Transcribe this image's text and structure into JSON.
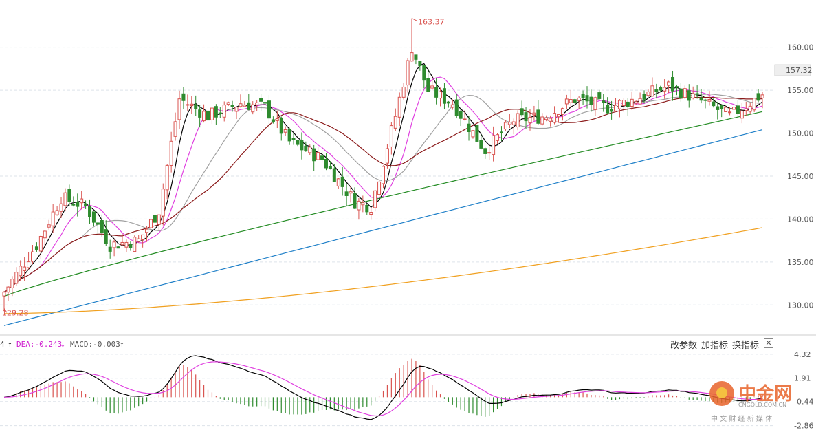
{
  "chart_data": [
    {
      "type": "candlestick",
      "y_ticks": [
        "160.00",
        "155.00",
        "150.00",
        "145.00",
        "140.00",
        "135.00",
        "130.00"
      ],
      "ylim": [
        126.5,
        165.5
      ],
      "last_price_label": "157.32",
      "last_price": 157.32,
      "high_annotation": "163.37",
      "low_annotation": "129.28",
      "colors": {
        "up": "#d9534f",
        "down": "#2e8b2e",
        "ma5": "#000000",
        "ma10": "#e040e0",
        "ma20": "#a0a0a0",
        "ma30": "#8b1a1a",
        "ma60": "#228b22",
        "ma120": "#1e7fc8",
        "ma250": "#f0a020"
      },
      "grid": true
    },
    {
      "type": "macd",
      "dea_label": "DEA:-0.243",
      "macd_label": "MACD:-0.003",
      "dif_label": "4",
      "y_ticks": [
        "4.32",
        "1.91",
        "-0.44",
        "-2.86"
      ],
      "ylim": [
        -3.3,
        4.8
      ]
    }
  ],
  "toolbar": {
    "params_label": "改参数",
    "add_indicator_label": "加指标",
    "switch_indicator_label": "换指标",
    "close_label": "✕"
  },
  "watermark": {
    "logo_text": "中金网",
    "domain": "CNGOLD.COM.CN",
    "tagline": "中 文 财 经 新 媒 体"
  }
}
